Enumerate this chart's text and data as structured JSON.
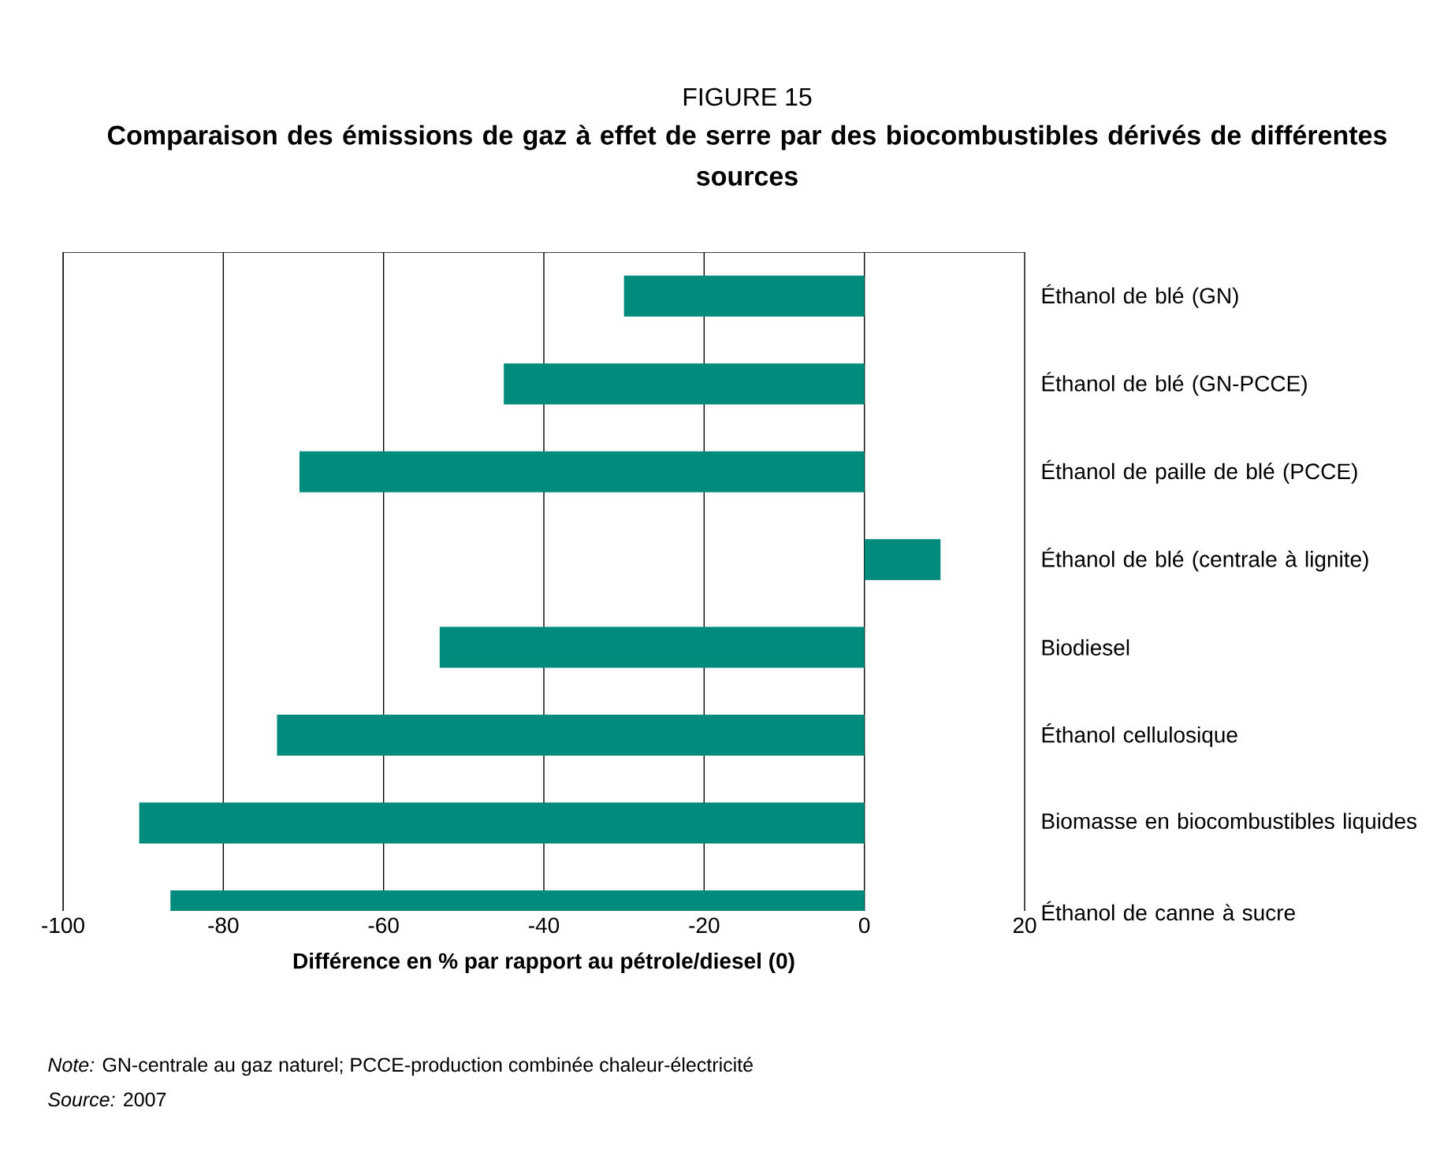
{
  "chart_data": {
    "type": "bar",
    "orientation": "horizontal",
    "title": "FIGURE 15",
    "subtitle": "Comparaison des émissions de gaz à effet de serre par des biocombustibles dérivés de différentes sources",
    "categories": [
      "Éthanol de blé (GN)",
      "Éthanol de blé (GN-PCCE)",
      "Éthanol de paille de blé (PCCE)",
      "Éthanol de blé (centrale à lignite)",
      "Biodiesel",
      "Éthanol cellulosique",
      "Biomasse en biocombustibles liquides",
      "Éthanol de canne à sucre"
    ],
    "values": [
      -30,
      -45,
      -70.5,
      9.5,
      -53,
      -73.3,
      -90.5,
      -86.6
    ],
    "color": "#008b7c",
    "xlim": [
      -100,
      20
    ],
    "xticks": [
      -100,
      -80,
      -60,
      -40,
      -20,
      0,
      20
    ],
    "grid": "x",
    "xlabel": "Différence en % par rapport au pétrole/diesel (0)",
    "annotations": [
      "*Note:* GN-centrale au gaz naturel; PCCE-production combinée chaleur-électricité",
      "*Source:* 2007"
    ]
  }
}
